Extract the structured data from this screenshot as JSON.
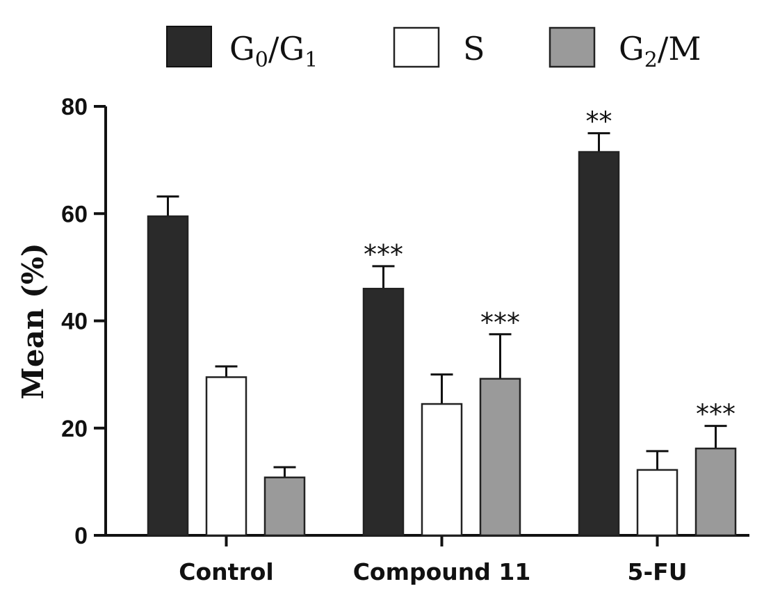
{
  "chart_data": {
    "type": "bar",
    "title": "",
    "xlabel": "",
    "ylabel": "Mean (%)",
    "ylim": [
      0,
      80
    ],
    "yticks": [
      "0",
      "20",
      "40",
      "60",
      "80"
    ],
    "categories": [
      "Control",
      "Compound 11",
      "5-FU"
    ],
    "legend_position": "top",
    "series": [
      {
        "name": "G0/G1",
        "label_main": "G",
        "label_sub1": "0",
        "label_mid": "/G",
        "label_sub2": "1",
        "color": "#2a2a2a",
        "values": [
          59.5,
          46,
          71.5
        ],
        "errors": [
          3.7,
          4.2,
          3.5
        ],
        "significance": [
          "",
          "***",
          "**"
        ]
      },
      {
        "name": "S",
        "label_main": "S",
        "color": "#ffffff",
        "values": [
          29.5,
          24.5,
          12.2
        ],
        "errors": [
          2.0,
          5.5,
          3.5
        ],
        "significance": [
          "",
          "",
          ""
        ]
      },
      {
        "name": "G2/M",
        "label_main": "G",
        "label_sub1": "2",
        "label_mid": "/M",
        "color": "#9a9a9a",
        "values": [
          10.8,
          29.2,
          16.2
        ],
        "errors": [
          1.9,
          8.3,
          4.2
        ],
        "significance": [
          "",
          "***",
          "***"
        ]
      }
    ]
  }
}
